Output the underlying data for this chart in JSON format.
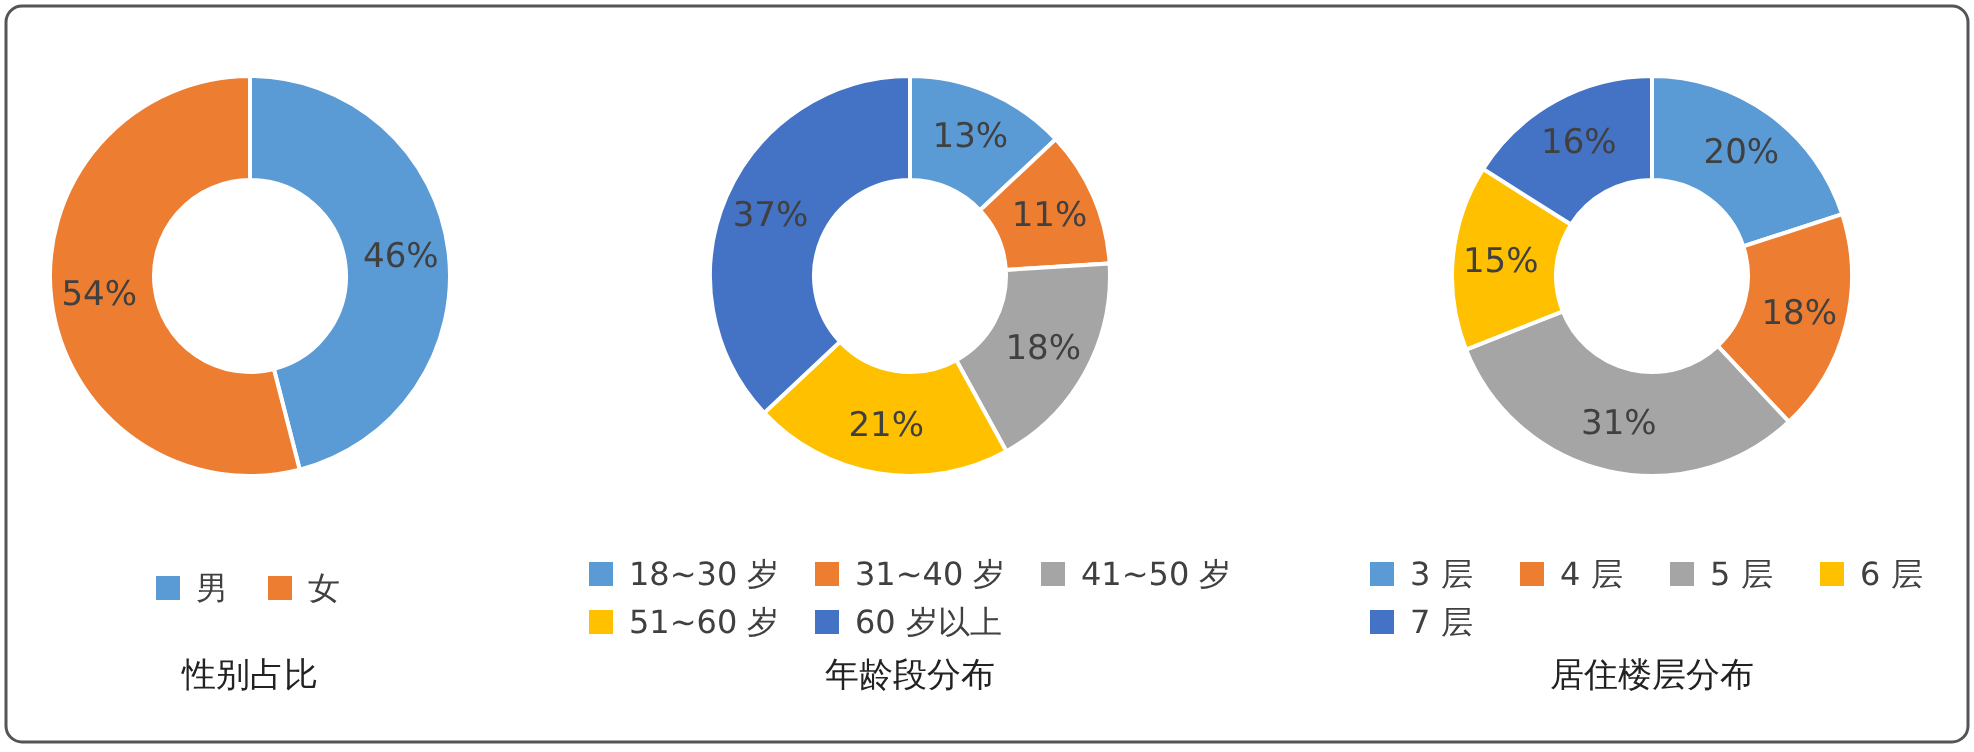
{
  "chart_data": [
    {
      "type": "donut",
      "title": "性别占比",
      "categories": [
        "男",
        "女"
      ],
      "values": [
        46,
        54
      ],
      "colors": [
        "#5b9bd5",
        "#ed7d31"
      ],
      "value_labels": [
        "46%",
        "54%"
      ],
      "legend": "bottom"
    },
    {
      "type": "donut",
      "title": "年龄段分布",
      "categories": [
        "18~30 岁",
        "31~40 岁",
        "41~50 岁",
        "51~60 岁",
        "60 岁以上"
      ],
      "values": [
        13,
        11,
        18,
        21,
        37
      ],
      "colors": [
        "#5b9bd5",
        "#ed7d31",
        "#a5a5a5",
        "#ffc000",
        "#4472c4"
      ],
      "value_labels": [
        "13%",
        "11%",
        "18%",
        "21%",
        "37%"
      ],
      "legend": "bottom"
    },
    {
      "type": "donut",
      "title": "居住楼层分布",
      "categories": [
        "3 层",
        "4 层",
        "5 层",
        "6 层",
        "7 层"
      ],
      "values": [
        20,
        18,
        31,
        15,
        16
      ],
      "colors": [
        "#5b9bd5",
        "#ed7d31",
        "#a5a5a5",
        "#ffc000",
        "#4472c4"
      ],
      "value_labels": [
        "20%",
        "18%",
        "31%",
        "15%",
        "16%"
      ],
      "legend": "bottom"
    }
  ]
}
